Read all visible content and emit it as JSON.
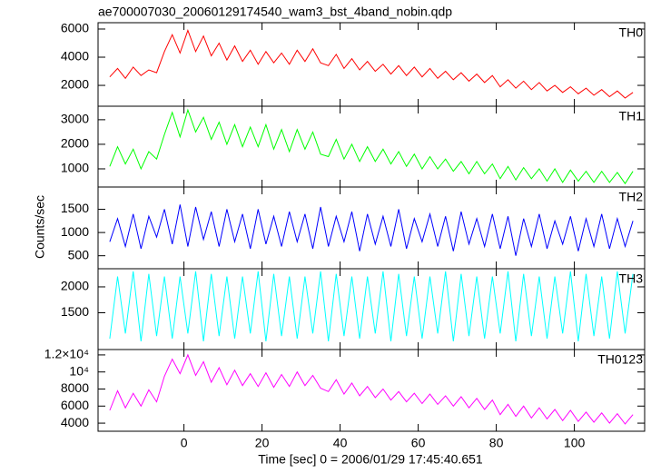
{
  "chart_data": {
    "type": "line",
    "title": "ae700007030_20060129174540_wam3_bst_4band_nobin.qdp",
    "xlabel": "Time [sec] 0 = 2006/01/29 17:45:40.651",
    "ylabel": "Counts/sec",
    "xlim": [
      -22,
      118
    ],
    "xticks": [
      0,
      20,
      40,
      60,
      80,
      100
    ],
    "x": [
      -19,
      -17,
      -15,
      -13,
      -11,
      -9,
      -7,
      -5,
      -3,
      -1,
      1,
      3,
      5,
      7,
      9,
      11,
      13,
      15,
      17,
      19,
      21,
      23,
      25,
      27,
      29,
      31,
      33,
      35,
      37,
      39,
      41,
      43,
      45,
      47,
      49,
      51,
      53,
      55,
      57,
      59,
      61,
      63,
      65,
      67,
      69,
      71,
      73,
      75,
      77,
      79,
      81,
      83,
      85,
      87,
      89,
      91,
      93,
      95,
      97,
      99,
      101,
      103,
      105,
      107,
      109,
      111,
      113,
      115
    ],
    "panels": [
      {
        "ylim": [
          520,
          6450
        ],
        "yticks": [
          2000,
          4000,
          6000
        ],
        "series": [
          {
            "name": "TH0",
            "color": "#ff0000",
            "values": [
              2600,
              3200,
              2500,
              3300,
              2700,
              3100,
              2900,
              4400,
              5600,
              4300,
              5900,
              4400,
              5500,
              4100,
              5000,
              3800,
              4800,
              3700,
              4500,
              3500,
              4400,
              3600,
              4300,
              3500,
              4500,
              3700,
              4600,
              3600,
              3400,
              4200,
              3200,
              3900,
              3100,
              3700,
              3000,
              3500,
              2800,
              3400,
              2700,
              3300,
              2600,
              3200,
              2500,
              3000,
              2400,
              2900,
              2300,
              2800,
              2200,
              2700,
              1900,
              2400,
              1800,
              2300,
              1700,
              2200,
              1600,
              2000,
              1500,
              1900,
              1400,
              1800,
              1300,
              1700,
              1200,
              1600,
              1100,
              1500
            ]
          }
        ]
      },
      {
        "ylim": [
          260,
          3550
        ],
        "yticks": [
          1000,
          2000,
          3000
        ],
        "series": [
          {
            "name": "TH1",
            "color": "#00ff00",
            "values": [
              1100,
              1900,
              1200,
              1800,
              1000,
              1700,
              1400,
              2400,
              3300,
              2300,
              3400,
              2500,
              3100,
              2200,
              2900,
              2000,
              2800,
              1900,
              2700,
              1900,
              2800,
              1800,
              2600,
              1700,
              2600,
              1800,
              2500,
              1600,
              1500,
              2200,
              1400,
              2000,
              1300,
              1900,
              1300,
              1800,
              1200,
              1700,
              1100,
              1600,
              1000,
              1500,
              1000,
              1400,
              900,
              1300,
              800,
              1300,
              800,
              1200,
              600,
              1100,
              550,
              1050,
              600,
              1000,
              500,
              1000,
              450,
              950,
              500,
              900,
              450,
              900,
              450,
              850,
              400,
              900
            ]
          }
        ]
      },
      {
        "ylim": [
          220,
          1980
        ],
        "yticks": [
          500,
          1000,
          1500
        ],
        "series": [
          {
            "name": "TH2",
            "color": "#0000ff",
            "values": [
              800,
              1300,
              700,
              1400,
              650,
              1350,
              900,
              1500,
              750,
              1600,
              700,
              1550,
              850,
              1450,
              700,
              1500,
              800,
              1400,
              650,
              1500,
              750,
              1350,
              700,
              1450,
              800,
              1400,
              650,
              1550,
              700,
              1350,
              800,
              1450,
              600,
              1400,
              750,
              1350,
              700,
              1500,
              650,
              1300,
              800,
              1400,
              700,
              1350,
              600,
              1450,
              750,
              1300,
              700,
              1400,
              650,
              1350,
              500,
              1300,
              700,
              1400,
              650,
              1250,
              750,
              1350,
              600,
              1300,
              700,
              1400,
              650,
              1300,
              700,
              1250
            ]
          }
        ]
      },
      {
        "ylim": [
          790,
          2350
        ],
        "yticks": [
          1500,
          2000
        ],
        "series": [
          {
            "name": "TH3",
            "color": "#00ffff",
            "values": [
              1000,
              2200,
              1100,
              2300,
              950,
              2250,
              1050,
              2200,
              1000,
              2200,
              1100,
              2300,
              950,
              2250,
              1050,
              2200,
              1000,
              2200,
              1100,
              2300,
              950,
              2250,
              1050,
              2200,
              1000,
              2200,
              1100,
              2300,
              950,
              2250,
              1050,
              2200,
              1000,
              2200,
              1100,
              2300,
              950,
              2250,
              1050,
              2200,
              1000,
              2200,
              1100,
              2300,
              950,
              2250,
              1050,
              2200,
              1000,
              2200,
              1100,
              2300,
              950,
              2250,
              1050,
              2200,
              1000,
              2200,
              1100,
              2300,
              950,
              2250,
              1050,
              2200,
              1000,
              2300,
              1100,
              2250
            ]
          }
        ]
      },
      {
        "ylim": [
          3050,
          12630
        ],
        "yticks": [
          4000,
          6000,
          8000,
          {
            "value": 10000,
            "label": "10⁴"
          },
          {
            "value": 12000,
            "label": "1.2×10⁴"
          }
        ],
        "series": [
          {
            "name": "TH0123",
            "color": "#ff00ff",
            "values": [
              5500,
              7800,
              5800,
              7500,
              6000,
              7900,
              6500,
              9500,
              11500,
              9800,
              12000,
              9600,
              11200,
              8800,
              10500,
              8500,
              10200,
              8400,
              9800,
              8300,
              9900,
              8200,
              9700,
              8300,
              10000,
              8400,
              9600,
              8100,
              7700,
              9100,
              7400,
              8700,
              7200,
              8300,
              7000,
              8000,
              6700,
              7700,
              6500,
              7500,
              6300,
              7400,
              6200,
              7200,
              6000,
              7100,
              5800,
              6900,
              5600,
              6700,
              5000,
              6200,
              4800,
              6000,
              4600,
              5800,
              4500,
              5600,
              4300,
              5500,
              4200,
              5300,
              4100,
              5200,
              4000,
              5100,
              3900,
              5000
            ]
          }
        ]
      }
    ]
  }
}
